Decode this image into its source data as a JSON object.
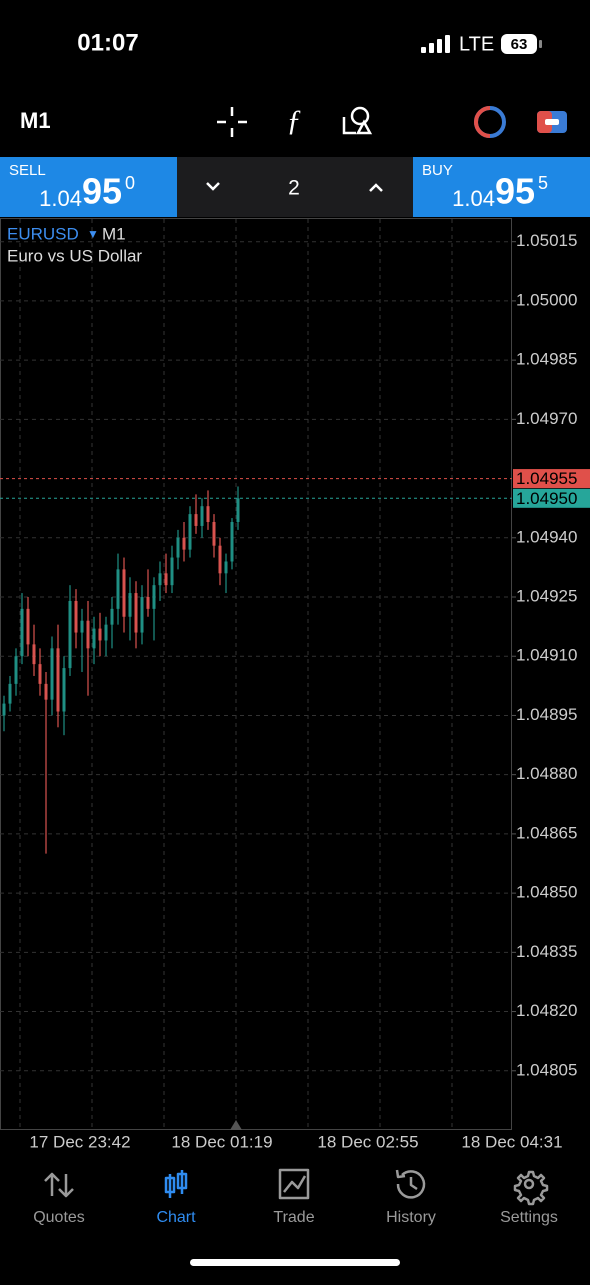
{
  "status": {
    "time": "01:07",
    "network": "LTE",
    "battery": "63"
  },
  "toolbar": {
    "timeframe": "M1"
  },
  "trade_panel": {
    "sell": {
      "label": "SELL",
      "price_head": "1.04",
      "price_pips": "95",
      "price_point": "0"
    },
    "volume": "2",
    "buy": {
      "label": "BUY",
      "price_head": "1.04",
      "price_pips": "95",
      "price_point": "5"
    }
  },
  "chart_data": {
    "type": "candlestick",
    "symbol": "EURUSD",
    "timeframe": "M1",
    "description": "Euro vs US Dollar",
    "up_color": "#1f8f84",
    "down_color": "#d9534f",
    "grid": true,
    "ylim": [
      1.0479,
      1.05021
    ],
    "yticks": [
      1.05015,
      {
        "value": 1.05,
        "label": "1.05000"
      },
      1.04985,
      {
        "value": 1.0497,
        "label": "1.04970"
      },
      {
        "value": 1.0494,
        "label": "1.04940"
      },
      1.04925,
      {
        "value": 1.0491,
        "label": "1.04910"
      },
      1.04895,
      {
        "value": 1.0488,
        "label": "1.04880"
      },
      1.04865,
      {
        "value": 1.0485,
        "label": "1.04850"
      },
      1.04835,
      {
        "value": 1.0482,
        "label": "1.04820"
      },
      1.04805
    ],
    "ask": 1.04955,
    "bid": {
      "value": 1.0495,
      "label": "1.04950"
    },
    "x_labels": [
      "17 Dec 23:42",
      "18 Dec 01:19",
      "18 Dec 02:55",
      "18 Dec 04:31"
    ],
    "candles": [
      {
        "open": 1.04895,
        "high": 1.049,
        "low": 1.04891,
        "close": 1.04898
      },
      {
        "open": 1.04898,
        "high": 1.04905,
        "low": 1.04896,
        "close": 1.04903
      },
      {
        "open": 1.04903,
        "high": 1.04912,
        "low": 1.049,
        "close": 1.0491
      },
      {
        "open": 1.0491,
        "high": 1.04926,
        "low": 1.04908,
        "close": 1.04922
      },
      {
        "open": 1.04922,
        "high": 1.04925,
        "low": 1.0491,
        "close": 1.04913
      },
      {
        "open": 1.04913,
        "high": 1.04918,
        "low": 1.04905,
        "close": 1.04908
      },
      {
        "open": 1.04908,
        "high": 1.04912,
        "low": 1.049,
        "close": 1.04903
      },
      {
        "open": 1.04903,
        "high": 1.04906,
        "low": 1.0486,
        "close": 1.04899
      },
      {
        "open": 1.04899,
        "high": 1.04915,
        "low": 1.04895,
        "close": 1.04912
      },
      {
        "open": 1.04912,
        "high": 1.04918,
        "low": 1.04892,
        "close": 1.04896
      },
      {
        "open": 1.04896,
        "high": 1.0491,
        "low": 1.0489,
        "close": 1.04907
      },
      {
        "open": 1.04907,
        "high": 1.04928,
        "low": 1.04905,
        "close": 1.04924
      },
      {
        "open": 1.04924,
        "high": 1.04927,
        "low": 1.04912,
        "close": 1.04916
      },
      {
        "open": 1.04916,
        "high": 1.04922,
        "low": 1.04906,
        "close": 1.04919
      },
      {
        "open": 1.04919,
        "high": 1.04924,
        "low": 1.049,
        "close": 1.04912
      },
      {
        "open": 1.04912,
        "high": 1.0492,
        "low": 1.04908,
        "close": 1.04917
      },
      {
        "open": 1.04917,
        "high": 1.04921,
        "low": 1.0491,
        "close": 1.04914
      },
      {
        "open": 1.04914,
        "high": 1.0492,
        "low": 1.0491,
        "close": 1.04918
      },
      {
        "open": 1.04918,
        "high": 1.04925,
        "low": 1.04912,
        "close": 1.04922
      },
      {
        "open": 1.04922,
        "high": 1.04936,
        "low": 1.04918,
        "close": 1.04932
      },
      {
        "open": 1.04932,
        "high": 1.04935,
        "low": 1.04916,
        "close": 1.0492
      },
      {
        "open": 1.0492,
        "high": 1.0493,
        "low": 1.04914,
        "close": 1.04926
      },
      {
        "open": 1.04926,
        "high": 1.04929,
        "low": 1.04912,
        "close": 1.04916
      },
      {
        "open": 1.04916,
        "high": 1.04928,
        "low": 1.04913,
        "close": 1.04925
      },
      {
        "open": 1.04925,
        "high": 1.04932,
        "low": 1.0492,
        "close": 1.04922
      },
      {
        "open": 1.04922,
        "high": 1.0493,
        "low": 1.04914,
        "close": 1.04928
      },
      {
        "open": 1.04928,
        "high": 1.04934,
        "low": 1.04924,
        "close": 1.04931
      },
      {
        "open": 1.04931,
        "high": 1.04936,
        "low": 1.04926,
        "close": 1.04928
      },
      {
        "open": 1.04928,
        "high": 1.04938,
        "low": 1.04926,
        "close": 1.04935
      },
      {
        "open": 1.04935,
        "high": 1.04942,
        "low": 1.04932,
        "close": 1.0494
      },
      {
        "open": 1.0494,
        "high": 1.04944,
        "low": 1.04934,
        "close": 1.04937
      },
      {
        "open": 1.04937,
        "high": 1.04948,
        "low": 1.04935,
        "close": 1.04946
      },
      {
        "open": 1.04946,
        "high": 1.04951,
        "low": 1.04941,
        "close": 1.04943
      },
      {
        "open": 1.04943,
        "high": 1.0495,
        "low": 1.0494,
        "close": 1.04948
      },
      {
        "open": 1.04948,
        "high": 1.04952,
        "low": 1.04942,
        "close": 1.04944
      },
      {
        "open": 1.04944,
        "high": 1.04946,
        "low": 1.04935,
        "close": 1.04938
      },
      {
        "open": 1.04938,
        "high": 1.0494,
        "low": 1.04928,
        "close": 1.04931
      },
      {
        "open": 1.04931,
        "high": 1.04936,
        "low": 1.04926,
        "close": 1.04934
      },
      {
        "open": 1.04934,
        "high": 1.04945,
        "low": 1.04932,
        "close": 1.04944
      },
      {
        "open": 1.04944,
        "high": 1.04953,
        "low": 1.04942,
        "close": 1.0495
      }
    ]
  },
  "tabs": [
    {
      "label": "Quotes"
    },
    {
      "label": "Chart"
    },
    {
      "label": "Trade"
    },
    {
      "label": "History"
    },
    {
      "label": "Settings"
    }
  ],
  "selected_tab": "Chart"
}
